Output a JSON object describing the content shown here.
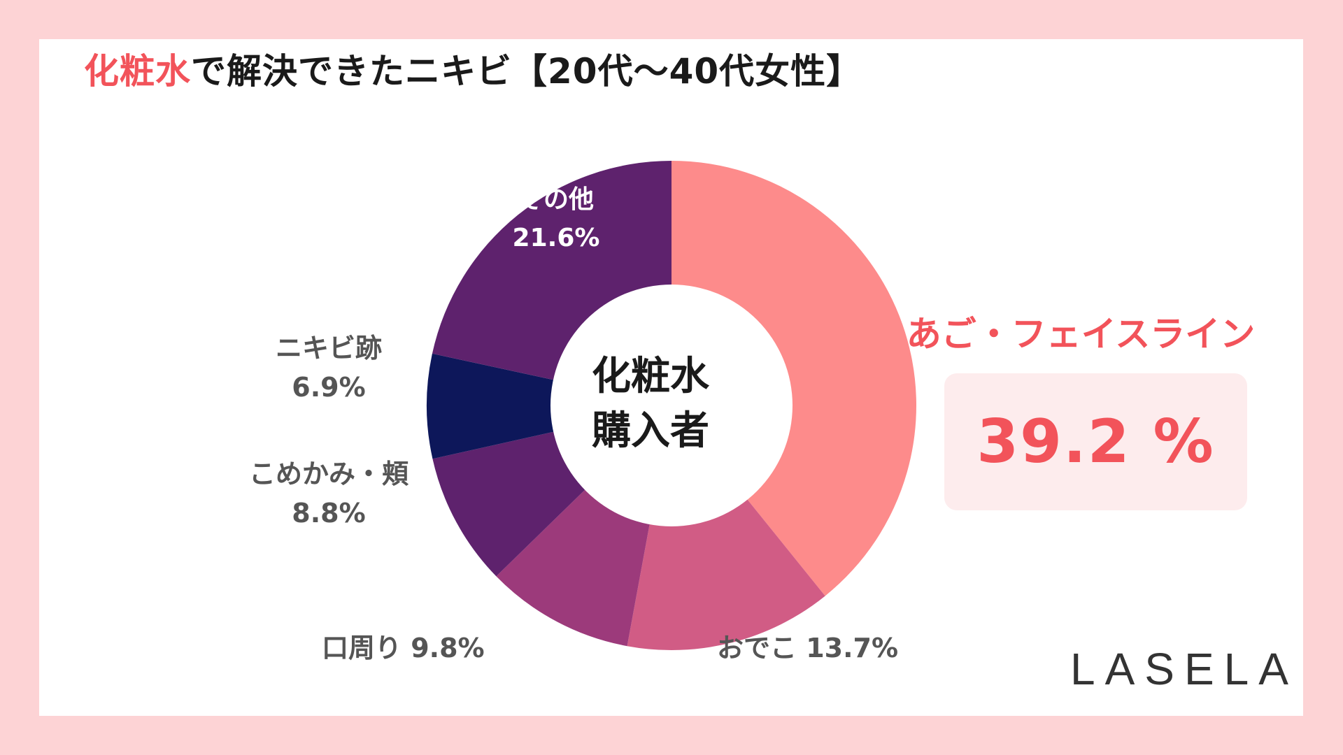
{
  "title": {
    "accent": "化粧水",
    "rest": "で解決できたニキビ【20代〜40代女性】"
  },
  "center_label": {
    "line1": "化粧水",
    "line2": "購入者"
  },
  "highlight": {
    "name": "あご・フェイスライン",
    "value": "39.2 %"
  },
  "brand": "LASELA",
  "chart_data": {
    "type": "pie",
    "variant": "donut",
    "title": "化粧水で解決できたニキビ【20代〜40代女性】",
    "unit": "%",
    "slices": [
      {
        "name": "あご・フェイスライン",
        "value": 39.2,
        "color": "#fd8b8b"
      },
      {
        "name": "おでこ",
        "value": 13.7,
        "color": "#d15c85"
      },
      {
        "name": "口周り",
        "value": 9.8,
        "color": "#9c3a7b"
      },
      {
        "name": "こめかみ・頬",
        "value": 8.8,
        "color": "#5e226d"
      },
      {
        "name": "ニキビ跡",
        "value": 6.9,
        "color": "#0d175a"
      },
      {
        "name": "その他",
        "value": 21.6,
        "color": "#5e226d"
      }
    ],
    "labels": {
      "forehead": "おでこ  13.7%",
      "mouth": "口周り  9.8%",
      "temple_name": "こめかみ・頬",
      "temple_value": "8.8%",
      "scar_name": "ニキビ跡",
      "scar_value": "6.9%",
      "other_name": "その他",
      "other_value": "21.6%"
    }
  }
}
